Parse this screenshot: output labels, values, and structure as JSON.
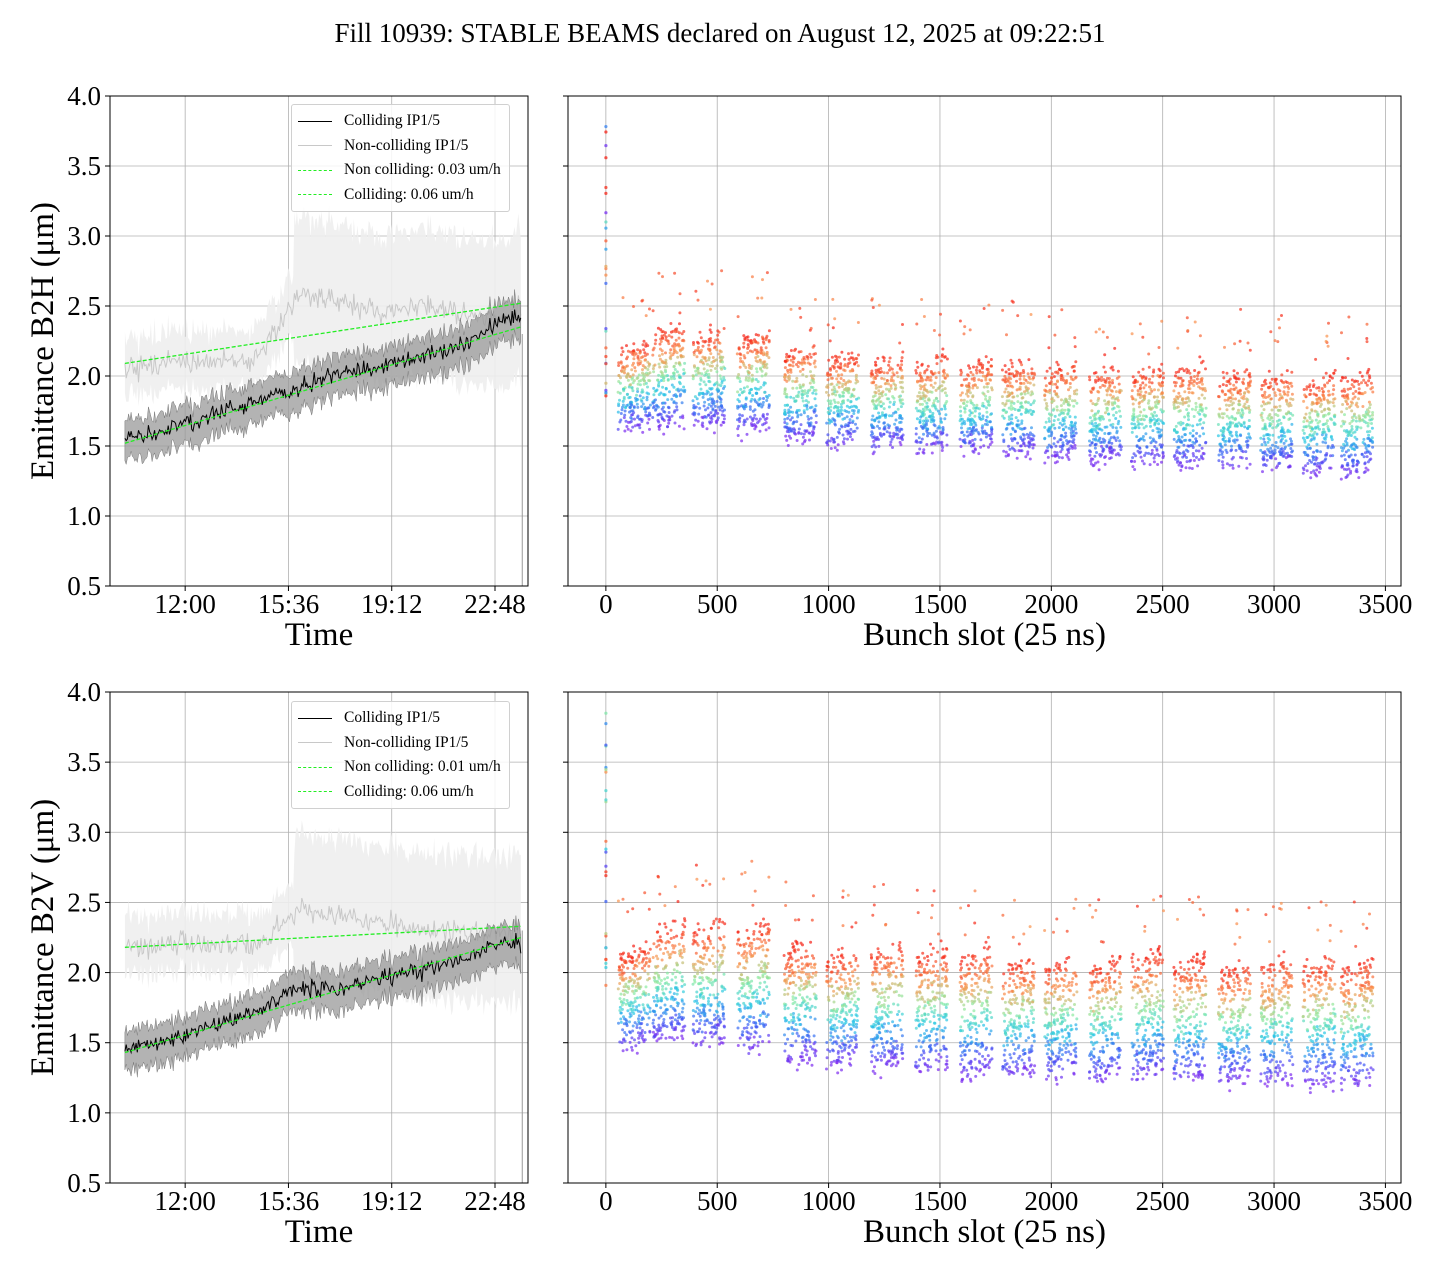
{
  "title": "Fill 10939: STABLE BEAMS declared on August 12, 2025 at 09:22:51",
  "colors": {
    "colliding": "#000000",
    "non_colliding": "#c8c8c8",
    "fit": "#22ee22",
    "grid": "#b0b0b0"
  },
  "chart_data": [
    {
      "type": "line",
      "panel": "top-left",
      "xlabel": "Time",
      "ylabel": "Emittance B2H (μm)",
      "x_ticks": [
        "12:00",
        "15:36",
        "19:12",
        "22:48"
      ],
      "x_tick_hours": [
        12.0,
        15.6,
        19.2,
        22.8
      ],
      "xlim_hours": [
        9.38,
        23.95
      ],
      "ylim": [
        0.5,
        4.0
      ],
      "y_ticks": [
        "0.5",
        "1.0",
        "1.5",
        "2.0",
        "2.5",
        "3.0",
        "3.5",
        "4.0"
      ],
      "grid": true,
      "legend_position": "top-right",
      "legend": [
        "Colliding IP1/5",
        "Non-colliding IP1/5",
        "Non colliding: 0.03 um/h",
        "Colliding: 0.06 um/h"
      ],
      "series": [
        {
          "name": "Colliding IP1/5",
          "x_hours": [
            9.9,
            11.4,
            13.0,
            14.5,
            16.0,
            17.4,
            18.9,
            20.3,
            21.7,
            23.2,
            23.7
          ],
          "values": [
            1.55,
            1.62,
            1.72,
            1.83,
            1.92,
            2.02,
            2.08,
            2.13,
            2.22,
            2.42,
            2.4
          ]
        },
        {
          "name": "Non-colliding IP1/5",
          "x_hours": [
            9.9,
            11.4,
            13.0,
            14.5,
            16.0,
            17.4,
            18.9,
            20.3,
            21.7,
            23.2,
            23.7
          ],
          "values": [
            2.05,
            2.08,
            2.1,
            2.12,
            2.6,
            2.55,
            2.45,
            2.5,
            2.42,
            2.45,
            2.5
          ]
        },
        {
          "name": "Non colliding: 0.03 um/h",
          "x_hours": [
            9.9,
            23.7
          ],
          "values": [
            2.09,
            2.52
          ]
        },
        {
          "name": "Colliding: 0.06 um/h",
          "x_hours": [
            9.9,
            23.7
          ],
          "values": [
            1.52,
            2.35
          ]
        }
      ]
    },
    {
      "type": "scatter",
      "panel": "top-right",
      "xlabel": "Bunch slot (25 ns)",
      "x_ticks": [
        "0",
        "500",
        "1000",
        "1500",
        "2000",
        "2500",
        "3000",
        "3500"
      ],
      "xlim": [
        -170,
        3570
      ],
      "ylim": [
        0.5,
        4.0
      ],
      "grid": true,
      "train_starts": [
        55,
        210,
        390,
        590,
        800,
        990,
        1190,
        1390,
        1590,
        1780,
        1970,
        2170,
        2360,
        2550,
        2750,
        2940,
        3130,
        3300
      ],
      "train_width": 145,
      "band_start": [
        1.62,
        1.65,
        1.65,
        1.62,
        1.55,
        1.52,
        1.5,
        1.48,
        1.47,
        1.45,
        1.42,
        1.4,
        1.38,
        1.37,
        1.36,
        1.34,
        1.32,
        1.3
      ],
      "band_end": [
        2.18,
        2.3,
        2.28,
        2.25,
        2.15,
        2.1,
        2.08,
        2.07,
        2.05,
        2.05,
        2.03,
        2.0,
        2.0,
        2.02,
        1.98,
        1.97,
        1.95,
        1.96
      ]
    },
    {
      "type": "line",
      "panel": "bottom-left",
      "xlabel": "Time",
      "ylabel": "Emittance B2V (μm)",
      "x_ticks": [
        "12:00",
        "15:36",
        "19:12",
        "22:48"
      ],
      "x_tick_hours": [
        12.0,
        15.6,
        19.2,
        22.8
      ],
      "xlim_hours": [
        9.38,
        23.95
      ],
      "ylim": [
        0.5,
        4.0
      ],
      "y_ticks": [
        "0.5",
        "1.0",
        "1.5",
        "2.0",
        "2.5",
        "3.0",
        "3.5",
        "4.0"
      ],
      "grid": true,
      "legend_position": "top-right",
      "legend": [
        "Colliding IP1/5",
        "Non-colliding IP1/5",
        "Non colliding: 0.01 um/h",
        "Colliding: 0.06 um/h"
      ],
      "series": [
        {
          "name": "Colliding IP1/5",
          "x_hours": [
            9.9,
            11.4,
            13.0,
            14.5,
            16.0,
            17.4,
            18.9,
            20.3,
            21.7,
            23.2,
            23.7
          ],
          "values": [
            1.45,
            1.52,
            1.62,
            1.72,
            1.9,
            1.88,
            1.97,
            2.02,
            2.1,
            2.22,
            2.2
          ]
        },
        {
          "name": "Non-colliding IP1/5",
          "x_hours": [
            9.9,
            11.4,
            13.0,
            14.5,
            16.0,
            17.4,
            18.9,
            20.3,
            21.7,
            23.2,
            23.7
          ],
          "values": [
            2.18,
            2.2,
            2.22,
            2.2,
            2.45,
            2.4,
            2.35,
            2.3,
            2.28,
            2.3,
            2.3
          ]
        },
        {
          "name": "Non colliding: 0.01 um/h",
          "x_hours": [
            9.9,
            23.7
          ],
          "values": [
            2.18,
            2.33
          ]
        },
        {
          "name": "Colliding: 0.06 um/h",
          "x_hours": [
            9.9,
            23.7
          ],
          "values": [
            1.43,
            2.25
          ]
        }
      ]
    },
    {
      "type": "scatter",
      "panel": "bottom-right",
      "xlabel": "Bunch slot (25 ns)",
      "x_ticks": [
        "0",
        "500",
        "1000",
        "1500",
        "2000",
        "2500",
        "3000",
        "3500"
      ],
      "xlim": [
        -170,
        3570
      ],
      "ylim": [
        0.5,
        4.0
      ],
      "grid": true,
      "train_starts": [
        55,
        210,
        390,
        590,
        800,
        990,
        1190,
        1390,
        1590,
        1780,
        1970,
        2170,
        2360,
        2550,
        2750,
        2940,
        3130,
        3300
      ],
      "train_width": 145,
      "band_start": [
        1.48,
        1.52,
        1.5,
        1.45,
        1.38,
        1.35,
        1.32,
        1.3,
        1.28,
        1.27,
        1.26,
        1.25,
        1.25,
        1.24,
        1.23,
        1.22,
        1.2,
        1.2
      ],
      "band_end": [
        2.12,
        2.3,
        2.3,
        2.3,
        2.15,
        2.1,
        2.15,
        2.12,
        2.1,
        2.05,
        2.05,
        2.05,
        2.1,
        2.05,
        2.0,
        2.05,
        2.05,
        2.02
      ]
    }
  ]
}
